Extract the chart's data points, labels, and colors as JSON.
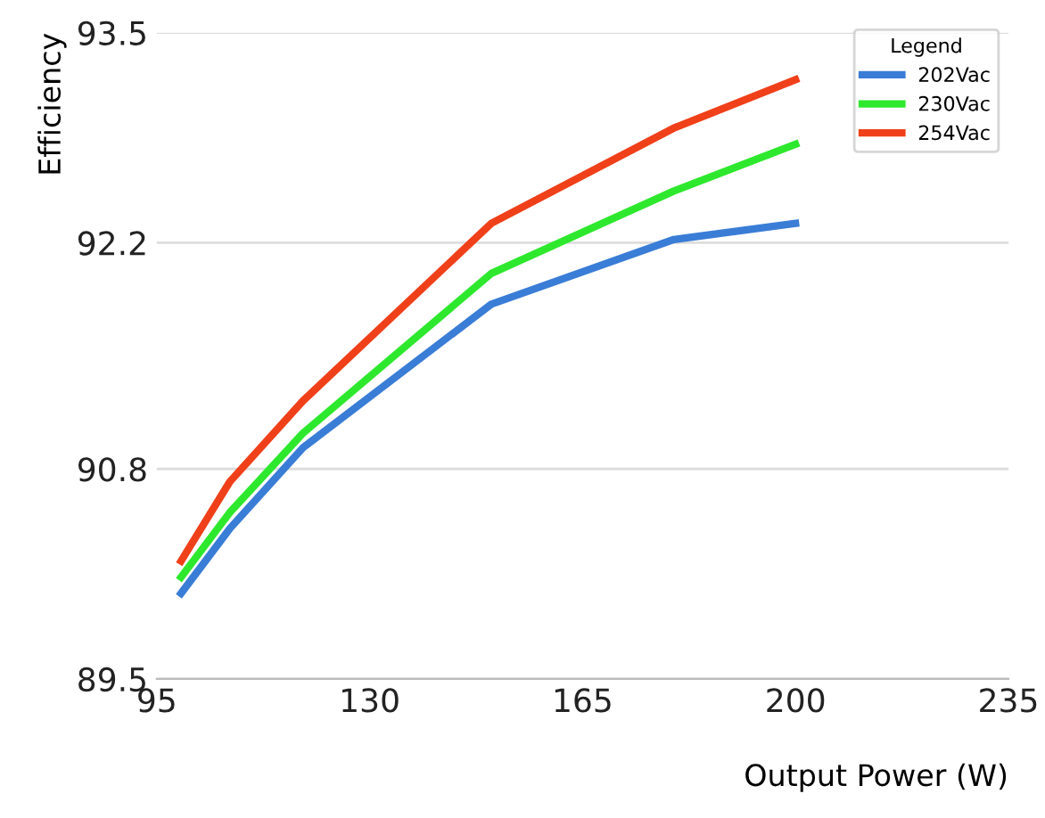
{
  "chart_data": {
    "type": "line",
    "xlabel": "Output Power (W)",
    "ylabel": "Efficiency",
    "legend_title": "Legend",
    "legend": "top right",
    "grid": "y",
    "marker": "none",
    "line_style": "solid",
    "xlim": [
      95,
      235
    ],
    "xticks": [
      95,
      130,
      165,
      200,
      235
    ],
    "ylim": [
      89.5,
      93.5
    ],
    "yticks": [
      89.5,
      90.8,
      92.2,
      93.5
    ],
    "series": [
      {
        "name": "202Vac",
        "color": "#3a7dd6",
        "x": [
          99,
          107,
          119,
          150,
          180,
          200
        ],
        "values": [
          90.03,
          90.43,
          90.93,
          91.82,
          92.22,
          92.32
        ]
      },
      {
        "name": "230Vac",
        "color": "#2ee82e",
        "x": [
          99,
          107,
          119,
          150,
          180,
          200
        ],
        "values": [
          90.13,
          90.53,
          91.02,
          92.01,
          92.52,
          92.81
        ]
      },
      {
        "name": "254Vac",
        "color": "#f0401a",
        "x": [
          99,
          107,
          119,
          150,
          180,
          200
        ],
        "values": [
          90.23,
          90.72,
          91.22,
          92.32,
          92.91,
          93.21
        ]
      }
    ]
  }
}
